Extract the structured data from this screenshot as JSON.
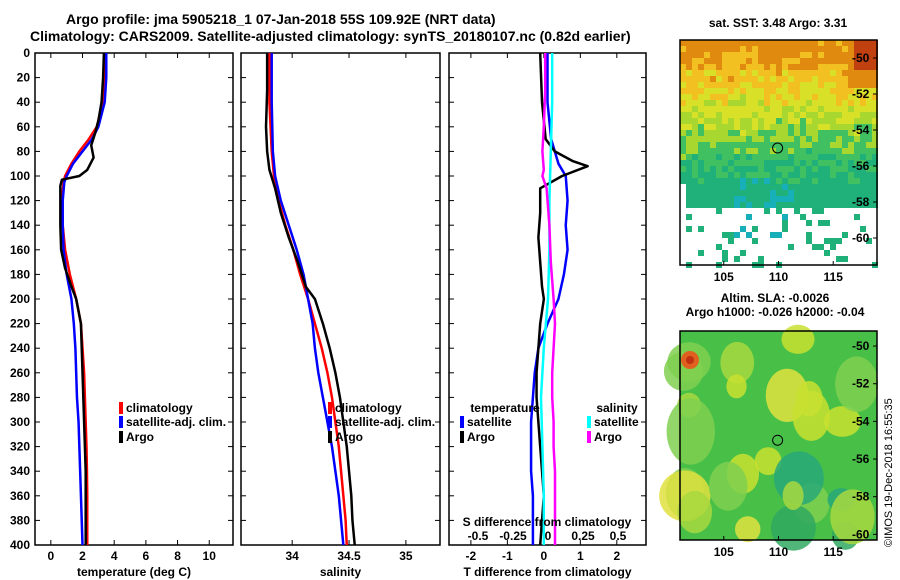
{
  "header": {
    "title_line1": "Argo profile: jma 5905218_1 07-Jan-2018 55S 109.92E (NRT data)",
    "title_line2": "Climatology: CARS2009. Satellite-adjusted climatology: synTS_20180107.nc (0.82d earlier)"
  },
  "credit": "©IMOS 19-Dec-2018 16:55:35",
  "colors": {
    "climatology": "#ff0000",
    "satellite": "#0000ff",
    "argo": "#000000",
    "salinity_satellite": "#00ffff",
    "salinity_argo": "#ff00ff"
  },
  "chart_data": [
    {
      "id": "temperature",
      "type": "line",
      "xlabel": "temperature (deg C)",
      "ylabel": "",
      "xlim": [
        -1,
        11.5
      ],
      "ylim": [
        400,
        0
      ],
      "xticks": [
        0,
        2,
        4,
        6,
        8,
        10
      ],
      "yticks": [
        0,
        20,
        40,
        60,
        80,
        100,
        120,
        140,
        160,
        180,
        200,
        220,
        240,
        260,
        280,
        300,
        320,
        340,
        360,
        380,
        400
      ],
      "legend": [
        "climatology",
        "satellite-adj. clim.",
        "Argo"
      ],
      "legend_position": "lower-right",
      "series": [
        {
          "name": "climatology",
          "color": "#ff0000",
          "depth": [
            0,
            20,
            40,
            60,
            70,
            80,
            90,
            100,
            105,
            120,
            140,
            160,
            180,
            200,
            220,
            240,
            260,
            280,
            300,
            320,
            340,
            360,
            380,
            400
          ],
          "values": [
            3.4,
            3.4,
            3.3,
            2.9,
            2.4,
            1.8,
            1.3,
            0.9,
            0.8,
            0.7,
            0.75,
            0.9,
            1.2,
            1.6,
            1.9,
            2.0,
            2.1,
            2.15,
            2.2,
            2.25,
            2.28,
            2.3,
            2.3,
            2.3
          ]
        },
        {
          "name": "satellite-adj. clim.",
          "color": "#0000ff",
          "depth": [
            0,
            20,
            40,
            60,
            70,
            80,
            90,
            100,
            105,
            120,
            140,
            160,
            180,
            200,
            220,
            240,
            260,
            280,
            300,
            320,
            340,
            360,
            380,
            400
          ],
          "values": [
            3.5,
            3.5,
            3.4,
            3.0,
            2.6,
            2.0,
            1.4,
            1.0,
            0.85,
            0.75,
            0.75,
            0.8,
            1.0,
            1.3,
            1.45,
            1.55,
            1.6,
            1.65,
            1.75,
            1.8,
            1.85,
            1.9,
            1.95,
            2.0
          ]
        },
        {
          "name": "Argo",
          "color": "#000000",
          "depth": [
            0,
            20,
            40,
            55,
            65,
            75,
            85,
            95,
            100,
            103,
            108,
            120,
            140,
            160,
            175,
            190,
            200,
            220,
            240,
            260,
            280,
            300,
            320,
            340,
            360,
            380,
            400
          ],
          "values": [
            3.35,
            3.3,
            3.2,
            3.0,
            2.8,
            2.55,
            2.7,
            2.3,
            1.8,
            0.7,
            0.6,
            0.6,
            0.6,
            0.65,
            0.9,
            1.3,
            1.6,
            1.9,
            1.95,
            2.0,
            2.05,
            2.1,
            2.15,
            2.2,
            2.2,
            2.2,
            2.2
          ]
        }
      ]
    },
    {
      "id": "salinity",
      "type": "line",
      "xlabel": "salinity",
      "ylabel": "",
      "xlim": [
        33.55,
        35.3
      ],
      "ylim": [
        400,
        0
      ],
      "xticks": [
        34,
        34.5,
        35
      ],
      "xtick_labels": [
        "34",
        "34.5",
        "35"
      ],
      "legend": [
        "climatology",
        "satellite-adj. clim.",
        "Argo"
      ],
      "legend_position": "lower-right",
      "series": [
        {
          "name": "climatology",
          "color": "#ff0000",
          "depth": [
            0,
            40,
            80,
            100,
            120,
            140,
            160,
            180,
            200,
            220,
            240,
            260,
            280,
            300,
            320,
            340,
            360,
            380,
            400
          ],
          "values": [
            33.8,
            33.8,
            33.82,
            33.84,
            33.88,
            33.94,
            34.01,
            34.07,
            34.14,
            34.2,
            34.26,
            34.31,
            34.35,
            34.38,
            34.41,
            34.43,
            34.45,
            34.47,
            34.48
          ]
        },
        {
          "name": "satellite-adj. clim.",
          "color": "#0000ff",
          "depth": [
            0,
            40,
            80,
            100,
            120,
            140,
            160,
            180,
            200,
            220,
            240,
            260,
            280,
            300,
            320,
            340,
            360,
            380,
            400
          ],
          "values": [
            33.82,
            33.82,
            33.83,
            33.85,
            33.9,
            33.97,
            34.04,
            34.1,
            34.14,
            34.18,
            34.2,
            34.23,
            34.27,
            34.31,
            34.35,
            34.38,
            34.41,
            34.43,
            34.45
          ]
        },
        {
          "name": "Argo",
          "color": "#000000",
          "depth": [
            0,
            30,
            60,
            80,
            95,
            110,
            130,
            150,
            170,
            190,
            200,
            220,
            240,
            260,
            280,
            300,
            320,
            340,
            360,
            380,
            400
          ],
          "values": [
            33.78,
            33.78,
            33.77,
            33.78,
            33.8,
            33.85,
            33.9,
            33.97,
            34.05,
            34.12,
            34.2,
            34.27,
            34.33,
            34.38,
            34.42,
            34.45,
            34.48,
            34.5,
            34.52,
            34.53,
            34.55
          ]
        }
      ]
    },
    {
      "id": "difference",
      "type": "line",
      "xlabel": "T difference from climatology",
      "secondary_xlabel": "S difference from climatology",
      "xlim": [
        -2.6,
        2.8
      ],
      "ylim": [
        400,
        0
      ],
      "xticks": [
        -2,
        -1,
        0,
        1,
        2
      ],
      "xtick_labels": [
        "-2",
        "-1",
        "0",
        "1",
        "2"
      ],
      "secondary_xticks": [
        -0.5,
        -0.25,
        0,
        0.25,
        0.5
      ],
      "secondary_xtick_labels": [
        "-0.5",
        "-0.25",
        "0",
        "0.25",
        "0.5"
      ],
      "legend_temperature_title": "temperature",
      "legend_temperature": [
        "satellite",
        "Argo"
      ],
      "legend_salinity_title": "salinity",
      "legend_salinity": [
        "satellite",
        "Argo"
      ],
      "series": [
        {
          "name": "temperature satellite",
          "color": "#0000ff",
          "depth": [
            0,
            40,
            70,
            90,
            100,
            120,
            140,
            160,
            180,
            200,
            220,
            240,
            260,
            280,
            300,
            320,
            340,
            360,
            380,
            400
          ],
          "values": [
            0.1,
            0.1,
            0.2,
            0.4,
            0.6,
            0.65,
            0.6,
            0.65,
            0.55,
            0.4,
            0.1,
            -0.15,
            -0.25,
            -0.3,
            -0.35,
            -0.35,
            -0.35,
            -0.3,
            -0.3,
            -0.3
          ]
        },
        {
          "name": "temperature Argo",
          "color": "#000000",
          "depth": [
            0,
            40,
            70,
            80,
            88,
            92,
            100,
            110,
            130,
            150,
            170,
            190,
            200,
            220,
            240,
            260,
            280,
            300,
            320,
            340,
            360,
            380,
            400
          ],
          "values": [
            -0.1,
            -0.05,
            0.05,
            0.3,
            0.8,
            1.2,
            0.5,
            -0.1,
            -0.1,
            -0.15,
            -0.1,
            -0.05,
            0.0,
            -0.1,
            -0.15,
            -0.2,
            -0.2,
            -0.15,
            -0.1,
            -0.05,
            0.0,
            -0.05,
            -0.1
          ]
        },
        {
          "name": "salinity satellite",
          "color": "#00ffff",
          "depth": [
            0,
            40,
            80,
            120,
            160,
            200,
            240,
            280,
            320,
            360,
            400
          ],
          "values": [
            0.03,
            0.03,
            0.02,
            0.01,
            0.01,
            0.0,
            -0.03,
            -0.05,
            -0.04,
            -0.03,
            -0.03
          ]
        },
        {
          "name": "salinity Argo",
          "color": "#ff00ff",
          "depth": [
            0,
            30,
            60,
            80,
            95,
            100,
            110,
            140,
            170,
            200,
            220,
            240,
            260,
            280,
            300,
            320,
            340,
            360,
            380,
            400
          ],
          "values": [
            -0.02,
            -0.02,
            -0.03,
            -0.04,
            -0.03,
            -0.04,
            -0.01,
            0.01,
            0.02,
            0.04,
            0.05,
            0.04,
            0.03,
            0.03,
            0.04,
            0.04,
            0.05,
            0.05,
            0.05,
            0.05
          ]
        }
      ]
    },
    {
      "id": "sst-map",
      "type": "heatmap",
      "title": "sat. SST: 3.48 Argo: 3.31",
      "xlim": [
        101,
        119
      ],
      "ylim": [
        -61.5,
        -49
      ],
      "xticks": [
        105,
        110,
        115
      ],
      "yticks": [
        -50,
        -52,
        -54,
        -56,
        -58,
        -60
      ],
      "marker": {
        "lon": 109.92,
        "lat": -55
      }
    },
    {
      "id": "sla-map",
      "type": "heatmap",
      "title_line1": "Altim. SLA: -0.0026",
      "title_line2": "Argo h1000: -0.026 h2000: -0.04",
      "xlim": [
        101,
        119
      ],
      "ylim": [
        -60.3,
        -49.2
      ],
      "xticks": [
        105,
        110,
        115
      ],
      "yticks": [
        -50,
        -52,
        -54,
        -56,
        -58,
        -60
      ],
      "marker": {
        "lon": 109.92,
        "lat": -55
      }
    }
  ]
}
